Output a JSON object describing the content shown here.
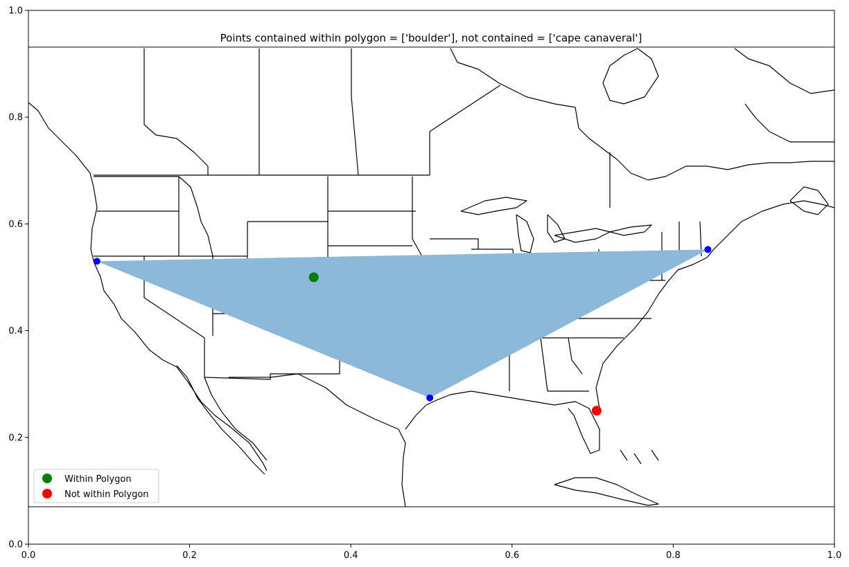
{
  "chart_data": {
    "type": "scatter",
    "title": "Points contained within polygon = ['boulder'], not contained = ['cape canaveral']",
    "xlim": [
      0,
      1
    ],
    "ylim": [
      0,
      1
    ],
    "x_ticks": [
      "0.0",
      "0.2",
      "0.4",
      "0.6",
      "0.8",
      "1.0"
    ],
    "y_ticks": [
      "0.0",
      "0.2",
      "0.4",
      "0.6",
      "0.8",
      "1.0"
    ],
    "grid": false,
    "legend_position": "lower-left",
    "map_extent_y": [
      0.068,
      0.932
    ],
    "polygon": {
      "color": "#8cb8d9",
      "vertices": [
        {
          "x": 0.085,
          "y": 0.53
        },
        {
          "x": 0.843,
          "y": 0.552
        },
        {
          "x": 0.498,
          "y": 0.274
        }
      ]
    },
    "vertex_markers": {
      "color": "#0000ff"
    },
    "series": [
      {
        "name": "Within Polygon",
        "color": "#008000",
        "points": [
          {
            "x": 0.354,
            "y": 0.5
          }
        ]
      },
      {
        "name": "Not within Polygon",
        "color": "#ff0000",
        "points": [
          {
            "x": 0.705,
            "y": 0.25
          }
        ]
      }
    ]
  }
}
